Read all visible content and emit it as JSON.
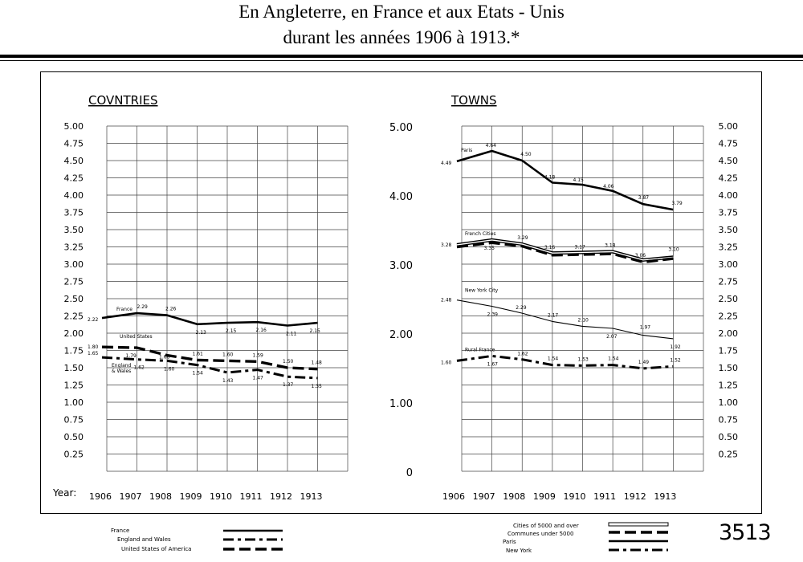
{
  "header": {
    "title_line1": "En Angleterre, en France et aux Etats - Unis",
    "title_line2": "durant les années 1906 à 1913.*"
  },
  "sheet_number": "3513",
  "chart_data": [
    {
      "type": "line",
      "title": "COVNTRIES",
      "xlabel": "Year:",
      "x": [
        "1906",
        "1907",
        "1908",
        "1909",
        "1910",
        "1911",
        "1912",
        "1913"
      ],
      "ylim": [
        0,
        5
      ],
      "yticks": [
        "5.00",
        "4.75",
        "4.50",
        "4.25",
        "4.00",
        "3.75",
        "3.50",
        "3.25",
        "3.00",
        "2.75",
        "2.50",
        "2.25",
        "2.00",
        "1.75",
        "1.50",
        "1.25",
        "1.00",
        "0.75",
        "0.50",
        "0.25"
      ],
      "grid": true,
      "series": [
        {
          "name": "France",
          "style": "solid-thick",
          "values": [
            2.22,
            2.29,
            2.26,
            2.13,
            2.15,
            2.16,
            2.11,
            2.15
          ],
          "labels": [
            "2.22",
            "2.29",
            "2.26",
            "2.13",
            "2.15",
            "2.16",
            "2.11",
            "2.15"
          ]
        },
        {
          "name": "United States",
          "style": "dash-thick",
          "values": [
            1.8,
            1.79,
            1.68,
            1.61,
            1.6,
            1.59,
            1.5,
            1.48
          ],
          "labels": [
            "1.80",
            "1.79",
            "1.68",
            "1.61",
            "1.60",
            "1.59",
            "1.50",
            "1.48"
          ]
        },
        {
          "name": "England & Wales",
          "style": "dashdot-thick",
          "values": [
            1.65,
            1.62,
            1.6,
            1.54,
            1.43,
            1.47,
            1.37,
            1.35
          ],
          "labels": [
            "1.65",
            "1.62",
            "1.60",
            "1.54",
            "1.43",
            "1.47",
            "1.37",
            "1.35"
          ]
        }
      ]
    },
    {
      "type": "line",
      "title": "TOWNS",
      "x": [
        "1906",
        "1907",
        "1908",
        "1909",
        "1910",
        "1911",
        "1912",
        "1913"
      ],
      "ylim": [
        0,
        5
      ],
      "yticks_left": [
        "5.00",
        "4.00",
        "3.00",
        "2.00",
        "1.00",
        "0"
      ],
      "yticks_right": [
        "5.00",
        "4.75",
        "4.50",
        "4.25",
        "4.00",
        "3.75",
        "3.50",
        "3.25",
        "3.00",
        "2.75",
        "2.50",
        "2.25",
        "2.00",
        "1.75",
        "1.50",
        "1.25",
        "1.00",
        "0.75",
        "0.50",
        "0.25"
      ],
      "grid": true,
      "series": [
        {
          "name": "Paris",
          "style": "solid-thick",
          "values": [
            4.49,
            4.64,
            4.5,
            4.18,
            4.15,
            4.06,
            3.87,
            3.79
          ],
          "labels": [
            "4.49",
            "4.64",
            "4.50",
            "4.18",
            "4.15",
            "4.06",
            "3.87",
            "3.79"
          ]
        },
        {
          "name": "French Cities",
          "style": "double",
          "values": [
            3.28,
            3.35,
            3.29,
            3.16,
            3.17,
            3.18,
            3.06,
            3.1
          ],
          "labels": [
            "3.28",
            "3.35",
            "3.29",
            "3.16",
            "3.17",
            "3.18",
            "3.06",
            "3.10"
          ]
        },
        {
          "name": "French Cities (dash)",
          "style": "dash-thick",
          "values": [
            3.25,
            3.31,
            3.26,
            3.13,
            3.14,
            3.15,
            3.03,
            3.08
          ],
          "labels": []
        },
        {
          "name": "New York City",
          "style": "solid-thin",
          "values": [
            2.48,
            2.39,
            2.29,
            2.17,
            2.1,
            2.07,
            1.97,
            1.92
          ],
          "labels": [
            "2.48",
            "2.39",
            "2.29",
            "2.17",
            "2.10",
            "2.07",
            "1.97",
            "1.92"
          ]
        },
        {
          "name": "Rural France",
          "style": "dashdot-thick",
          "values": [
            1.6,
            1.67,
            1.62,
            1.54,
            1.53,
            1.54,
            1.49,
            1.52
          ],
          "labels": [
            "1.60",
            "1.67",
            "1.62",
            "1.54",
            "1.53",
            "1.54",
            "1.49",
            "1.52"
          ]
        }
      ]
    }
  ],
  "legend_left": {
    "items": [
      "France",
      "England and Wales",
      "United States of America"
    ]
  },
  "legend_right": {
    "items": [
      "Cities of 5000 and over",
      "Communes under 5000",
      "Paris",
      "New York"
    ]
  }
}
